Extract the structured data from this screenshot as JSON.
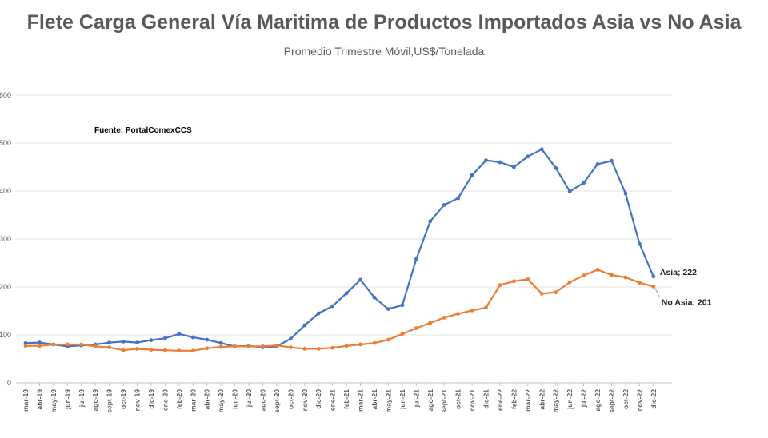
{
  "chart_data": {
    "type": "line",
    "title": "Flete Carga General Vía Maritima de Productos Importados Asia vs No Asia",
    "subtitle": "Promedio Trimestre Móvil,US$/Tonelada",
    "source_note": "Fuente: PortalComexCCS",
    "ylim": [
      0,
      600
    ],
    "yticks": [
      "0",
      "100",
      "200",
      "300",
      "400",
      "500",
      "600"
    ],
    "grid": true,
    "categories": [
      "mar-19",
      "abr-19",
      "may-19",
      "jun-19",
      "jul-19",
      "ago-19",
      "sept-19",
      "oct-19",
      "nov-19",
      "dic-19",
      "ene-20",
      "feb-20",
      "mar-20",
      "abr-20",
      "may-20",
      "jun-20",
      "jul-20",
      "ago-20",
      "sept-20",
      "oct-20",
      "nov-20",
      "dic-20",
      "ene-21",
      "feb-21",
      "mar-21",
      "abr-21",
      "may-21",
      "jun-21",
      "jul-21",
      "ago-21",
      "sept-21",
      "oct-21",
      "nov-21",
      "dic-21",
      "ene-22",
      "feb-22",
      "mar-22",
      "abr-22",
      "may-22",
      "jun-22",
      "jul-22",
      "ago-22",
      "sept-22",
      "oct-22",
      "nov-22",
      "dic-22"
    ],
    "series": [
      {
        "name": "Asia",
        "color": "#4472C4",
        "values": [
          83,
          84,
          80,
          76,
          78,
          80,
          84,
          86,
          84,
          89,
          93,
          102,
          95,
          90,
          83,
          76,
          77,
          74,
          76,
          92,
          120,
          145,
          160,
          187,
          215,
          178,
          154,
          162,
          258,
          337,
          371,
          385,
          433,
          464,
          460,
          450,
          472,
          487,
          448,
          399,
          417,
          456,
          463,
          395,
          290,
          222
        ]
      },
      {
        "name": "No Asia",
        "color": "#ED7D31",
        "values": [
          77,
          77,
          80,
          80,
          80,
          76,
          74,
          68,
          71,
          69,
          68,
          67,
          67,
          72,
          75,
          76,
          76,
          76,
          78,
          74,
          71,
          71,
          73,
          77,
          80,
          83,
          90,
          102,
          114,
          125,
          136,
          144,
          151,
          157,
          204,
          212,
          216,
          186,
          189,
          210,
          224,
          236,
          225,
          220,
          209,
          201
        ]
      }
    ],
    "annotations": [
      "Asia; 222",
      "No Asia; 201"
    ]
  }
}
